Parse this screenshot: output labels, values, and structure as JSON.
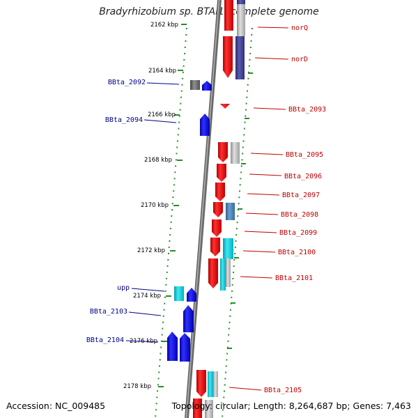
{
  "title": "Bradyrhizobium sp. BTAi1, complete genome",
  "accession_label": "Accession: NC_009485",
  "topology_label": "Topology: circular; Length: 8,264,687 bp; Genes: 7,463",
  "colors": {
    "plus_strand": "#e00000",
    "minus_strand": "#0000e0",
    "backbone": "#707070",
    "scale_dots": "#2a8a2a",
    "grey_gene": "#b4b4b4",
    "navy_gene": "#3b3b8f",
    "cyan_gene": "#1cc8d8",
    "steelblue_gene": "#4a7fb0",
    "label_plus": "#c00000",
    "label_minus": "#00008b"
  },
  "scale_ticks_kbp": [
    2162,
    2164,
    2166,
    2168,
    2170,
    2172,
    2174,
    2176,
    2178
  ],
  "tick_labels": [
    "2162 kbp",
    "2164 kbp",
    "2166 kbp",
    "2168 kbp",
    "2170 kbp",
    "2172 kbp",
    "2174 kbp",
    "2176 kbp",
    "2178 kbp"
  ],
  "gene_labels_plus": [
    "norQ",
    "norD",
    "BBta_2093",
    "BBta_2095",
    "BBta_2096",
    "BBta_2097",
    "BBta_2098",
    "BBta_2099",
    "BBta_2100",
    "BBta_2101",
    "BBta_2105"
  ],
  "gene_labels_minus": [
    "BBta_2092",
    "BBta_2094",
    "upp",
    "BBta_2103",
    "BBta_2104"
  ]
}
